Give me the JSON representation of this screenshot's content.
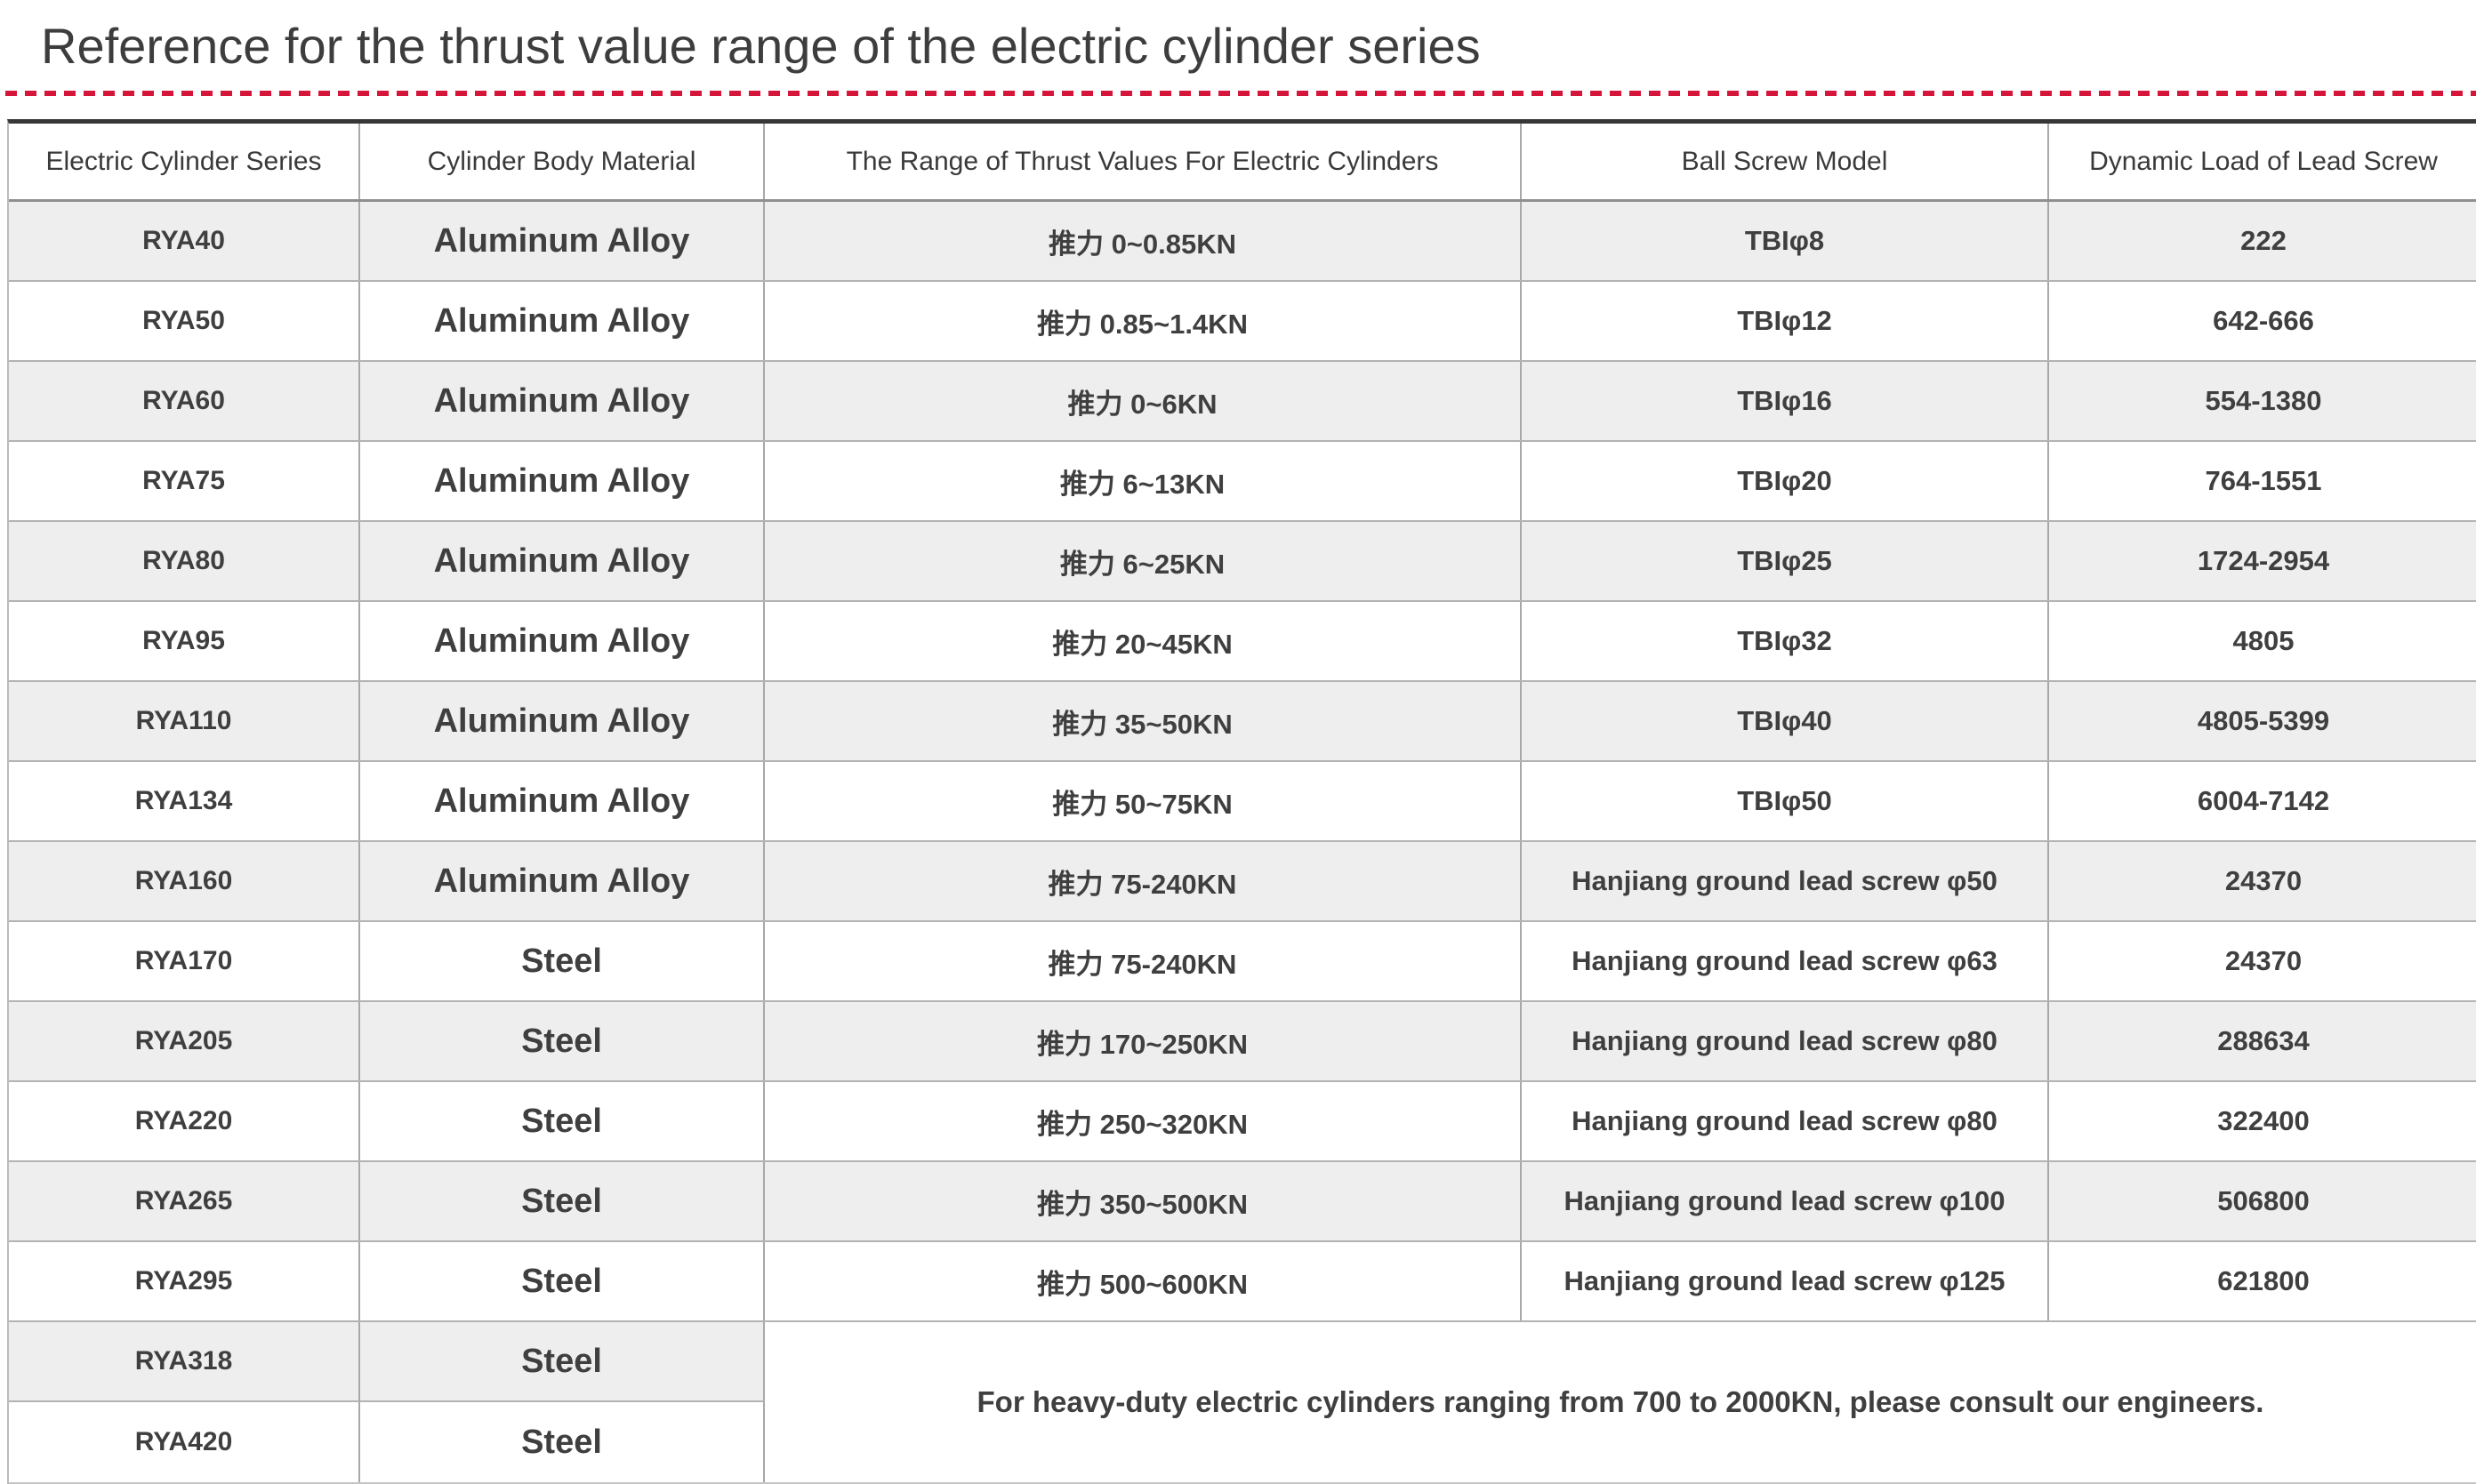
{
  "page": {
    "title": "Reference for the thrust value range of the electric cylinder series"
  },
  "colors": {
    "divider_red": "#d6153a",
    "table_top_border": "#373737",
    "row_alt_background": "#eeeeee",
    "text": "#3f3f3f"
  },
  "table": {
    "headers": {
      "series": "Electric Cylinder Series",
      "material": "Cylinder Body Material",
      "thrust": "The Range of Thrust Values For Electric Cylinders",
      "screw": "Ball Screw Model",
      "load": "Dynamic Load of Lead Screw"
    },
    "rows": [
      {
        "series": "RYA40",
        "material": "Aluminum Alloy",
        "thrust": "推力 0~0.85KN",
        "screw": "TBIφ8",
        "load": "222"
      },
      {
        "series": "RYA50",
        "material": "Aluminum Alloy",
        "thrust": "推力 0.85~1.4KN",
        "screw": "TBIφ12",
        "load": "642-666"
      },
      {
        "series": "RYA60",
        "material": "Aluminum Alloy",
        "thrust": "推力 0~6KN",
        "screw": "TBIφ16",
        "load": "554-1380"
      },
      {
        "series": "RYA75",
        "material": "Aluminum Alloy",
        "thrust": "推力 6~13KN",
        "screw": "TBIφ20",
        "load": "764-1551"
      },
      {
        "series": "RYA80",
        "material": "Aluminum Alloy",
        "thrust": "推力 6~25KN",
        "screw": "TBIφ25",
        "load": "1724-2954"
      },
      {
        "series": "RYA95",
        "material": "Aluminum Alloy",
        "thrust": "推力 20~45KN",
        "screw": "TBIφ32",
        "load": "4805"
      },
      {
        "series": "RYA110",
        "material": "Aluminum Alloy",
        "thrust": "推力 35~50KN",
        "screw": "TBIφ40",
        "load": "4805-5399"
      },
      {
        "series": "RYA134",
        "material": "Aluminum Alloy",
        "thrust": "推力 50~75KN",
        "screw": "TBIφ50",
        "load": "6004-7142"
      },
      {
        "series": "RYA160",
        "material": "Aluminum Alloy",
        "thrust": "推力 75-240KN",
        "screw": "Hanjiang ground lead screw φ50",
        "load": "24370"
      },
      {
        "series": "RYA170",
        "material": "Steel",
        "thrust": "推力 75-240KN",
        "screw": "Hanjiang ground lead screw φ63",
        "load": "24370"
      },
      {
        "series": "RYA205",
        "material": "Steel",
        "thrust": "推力 170~250KN",
        "screw": "Hanjiang ground lead screw φ80",
        "load": "288634"
      },
      {
        "series": "RYA220",
        "material": "Steel",
        "thrust": "推力 250~320KN",
        "screw": "Hanjiang ground lead screw φ80",
        "load": "322400"
      },
      {
        "series": "RYA265",
        "material": "Steel",
        "thrust": "推力 350~500KN",
        "screw": "Hanjiang ground lead screw φ100",
        "load": "506800"
      },
      {
        "series": "RYA295",
        "material": "Steel",
        "thrust": "推力 500~600KN",
        "screw": "Hanjiang ground lead screw φ125",
        "load": "621800"
      },
      {
        "series": "RYA318",
        "material": "Steel"
      },
      {
        "series": "RYA420",
        "material": "Steel"
      }
    ],
    "note": "For heavy-duty electric cylinders ranging from 700 to 2000KN, please consult our engineers."
  }
}
